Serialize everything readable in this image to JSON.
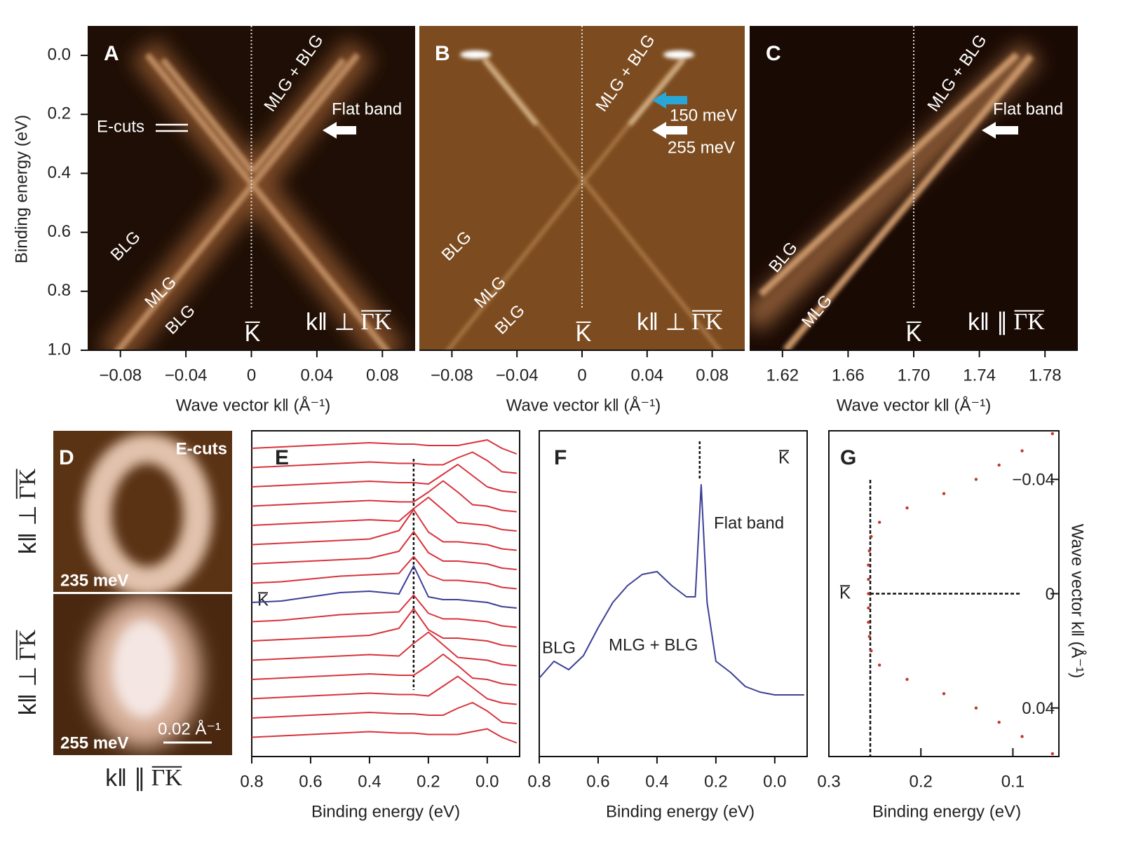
{
  "chart_data": [
    {
      "type": "heatmap",
      "title": "A",
      "xlabel": "Wave vector k‖ (Å⁻¹)",
      "ylabel": "Binding energy (eV)",
      "xlim": [
        -0.1,
        0.1
      ],
      "ylim": [
        -0.1,
        1.0
      ],
      "xticks": [
        {
          "value": -0.08,
          "label": "−0.08"
        },
        {
          "value": -0.04,
          "label": "−0.04"
        },
        0,
        0.04,
        0.08
      ],
      "yticks": [
        {
          "value": 0,
          "label": "0.0"
        },
        0.2,
        0.4,
        0.6,
        0.8,
        {
          "value": 1,
          "label": "1.0"
        }
      ],
      "marker": 0,
      "annotations": [
        "MLG + BLG",
        "E-cuts",
        "Flat band",
        "BLG",
        "MLG",
        "BLG",
        "K",
        "k‖ ⊥",
        "ΓK"
      ]
    },
    {
      "type": "heatmap",
      "title": "B",
      "xlabel": "Wave vector k‖ (Å⁻¹)",
      "xlim": [
        -0.1,
        0.1
      ],
      "xticks": [
        {
          "value": -0.08,
          "label": "−0.08"
        },
        {
          "value": -0.04,
          "label": "−0.04"
        },
        0,
        0.04,
        0.08
      ],
      "marker": 0,
      "annotations": [
        "MLG + BLG",
        "150 meV",
        "255 meV",
        "BLG",
        "MLG",
        "BLG",
        "K",
        "k‖ ⊥",
        "ΓK"
      ]
    },
    {
      "type": "heatmap",
      "title": "C",
      "xlabel": "Wave vector k‖ (Å⁻¹)",
      "xlim": [
        1.6,
        1.8
      ],
      "xticks": [
        1.62,
        1.66,
        {
          "value": 1.7,
          "label": "1.70"
        },
        1.74,
        1.78
      ],
      "marker": 1.7,
      "annotations": [
        "MLG + BLG",
        "Flat band",
        "BLG",
        "MLG",
        "K",
        "k‖ ∥",
        "ΓK"
      ]
    },
    {
      "type": "image",
      "title": "D",
      "annotations": [
        "E-cuts",
        "235 meV",
        "255 meV",
        "0.02 Å⁻¹",
        "k‖ ⊥",
        "ΓK",
        "k‖ ⊥",
        "ΓK",
        "k‖ ∥",
        "ΓK"
      ]
    },
    {
      "type": "line",
      "title": "E",
      "xlabel": "Binding energy (eV)",
      "xlim": [
        0.8,
        -0.11
      ],
      "xticks": [
        0.8,
        0.6,
        0.4,
        0.2,
        {
          "value": 0,
          "label": "0.0"
        }
      ],
      "marker": 0.25,
      "x": [
        0.8,
        0.7,
        0.6,
        0.5,
        0.4,
        0.3,
        0.25,
        0.2,
        0.15,
        0.1,
        0.05,
        0.0,
        -0.05,
        -0.1
      ],
      "series": [
        {
          "color": "#d8333b",
          "values": [
            4,
            5,
            6,
            7,
            8,
            7,
            7,
            6,
            6,
            6,
            8,
            10,
            4,
            0
          ]
        },
        {
          "color": "#d8333b",
          "values": [
            4,
            5,
            6,
            7,
            8,
            7,
            7,
            6,
            6,
            11,
            15,
            9,
            1,
            0
          ]
        },
        {
          "color": "#d8333b",
          "values": [
            4,
            5,
            6,
            7,
            8,
            7,
            7,
            6,
            13,
            20,
            12,
            4,
            1,
            0
          ]
        },
        {
          "color": "#d8333b",
          "values": [
            4,
            5,
            6,
            7,
            8,
            7,
            7,
            14,
            22,
            14,
            5,
            4,
            1,
            0
          ]
        },
        {
          "color": "#d8333b",
          "values": [
            4,
            5,
            6,
            7,
            8,
            7,
            16,
            24,
            15,
            6,
            5,
            4,
            1,
            0
          ]
        },
        {
          "color": "#d8333b",
          "values": [
            4,
            5,
            6,
            7,
            8,
            14,
            29,
            13,
            6,
            6,
            5,
            4,
            1,
            0
          ]
        },
        {
          "color": "#d8333b",
          "values": [
            4,
            5,
            6,
            7,
            8,
            13,
            27,
            12,
            6,
            6,
            5,
            4,
            1,
            0
          ]
        },
        {
          "color": "#d8333b",
          "values": [
            4,
            5,
            7,
            9,
            10,
            11,
            23,
            10,
            6,
            6,
            5,
            4,
            1,
            0
          ]
        },
        {
          "name": "K",
          "color": "#3b3f96",
          "values": [
            4,
            5,
            8,
            11,
            12,
            10,
            30,
            8,
            6,
            6,
            5,
            4,
            1,
            0
          ]
        },
        {
          "color": "#d8333b",
          "values": [
            4,
            5,
            7,
            9,
            10,
            11,
            23,
            10,
            6,
            6,
            5,
            4,
            1,
            0
          ]
        },
        {
          "color": "#d8333b",
          "values": [
            4,
            5,
            6,
            7,
            8,
            13,
            27,
            12,
            6,
            6,
            5,
            4,
            1,
            0
          ]
        },
        {
          "color": "#d8333b",
          "values": [
            4,
            5,
            6,
            7,
            8,
            7,
            16,
            24,
            15,
            6,
            5,
            4,
            1,
            0
          ]
        },
        {
          "color": "#d8333b",
          "values": [
            4,
            5,
            6,
            7,
            8,
            7,
            7,
            14,
            22,
            14,
            5,
            4,
            1,
            0
          ]
        },
        {
          "color": "#d8333b",
          "values": [
            4,
            5,
            6,
            7,
            8,
            7,
            7,
            6,
            13,
            20,
            12,
            4,
            1,
            0
          ]
        },
        {
          "color": "#d8333b",
          "values": [
            4,
            5,
            6,
            7,
            8,
            7,
            7,
            6,
            6,
            11,
            15,
            9,
            1,
            0
          ]
        },
        {
          "color": "#d8333b",
          "values": [
            4,
            5,
            6,
            7,
            8,
            7,
            7,
            6,
            6,
            6,
            8,
            10,
            4,
            0
          ]
        }
      ]
    },
    {
      "type": "line",
      "title": "F",
      "xlabel": "Binding energy (eV)",
      "xlim": [
        0.8,
        -0.11
      ],
      "xticks": [
        0.8,
        0.6,
        0.4,
        0.2,
        {
          "value": 0,
          "label": "0.0"
        }
      ],
      "marker": 0.255,
      "annotations": [
        "Flat band",
        "BLG",
        "MLG + BLG"
      ],
      "x": [
        0.8,
        0.75,
        0.7,
        0.65,
        0.6,
        0.55,
        0.5,
        0.45,
        0.4,
        0.35,
        0.3,
        0.27,
        0.25,
        0.23,
        0.2,
        0.15,
        0.1,
        0.05,
        0.0,
        -0.05,
        -0.1
      ],
      "series": [
        {
          "name": "K",
          "color": "#3b3f96",
          "values": [
            28,
            34,
            31,
            36,
            46,
            55,
            61,
            65,
            66,
            61,
            57,
            57,
            97,
            55,
            34,
            30,
            25,
            23,
            22,
            22,
            22
          ]
        }
      ]
    },
    {
      "type": "scatter",
      "title": "G",
      "xlabel": "Binding energy (eV)",
      "ylabel": "Wave vector k‖ (Å⁻¹)",
      "xlim": [
        0.3,
        0.05
      ],
      "xticks": [
        0.3,
        0.2,
        0.1
      ],
      "ylim": [
        -0.057,
        0.057
      ],
      "yticks": [
        {
          "value": -0.04,
          "label": "−0.04"
        },
        0,
        0.04
      ],
      "marker_x": 0.255,
      "marker_y": 0,
      "color": "#c0392b",
      "annotations": [
        "K"
      ],
      "x": [
        0.057,
        0.09,
        0.115,
        0.14,
        0.175,
        0.215,
        0.245,
        0.254,
        0.256,
        0.257,
        0.257,
        0.257,
        0.257,
        0.257,
        0.256,
        0.254,
        0.245,
        0.215,
        0.175,
        0.14,
        0.115,
        0.09,
        0.057
      ],
      "values": [
        -0.056,
        -0.05,
        -0.045,
        -0.04,
        -0.035,
        -0.03,
        -0.025,
        -0.02,
        -0.015,
        -0.01,
        -0.005,
        0,
        0.005,
        0.01,
        0.015,
        0.02,
        0.025,
        0.03,
        0.035,
        0.04,
        0.045,
        0.05,
        0.056
      ]
    }
  ]
}
